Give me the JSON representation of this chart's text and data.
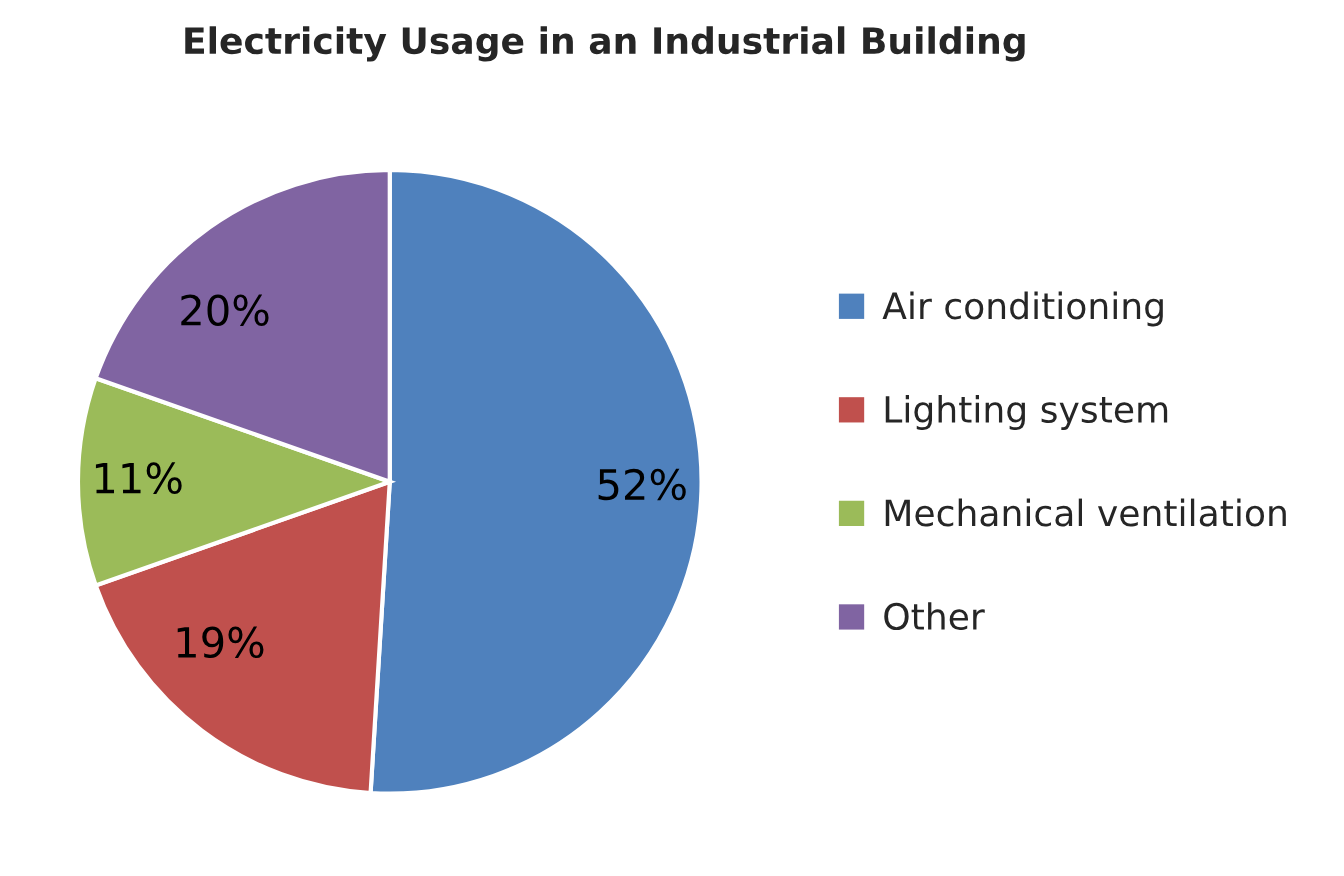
{
  "chart_data": {
    "type": "pie",
    "title": "Electricity Usage in an Industrial Building",
    "categories": [
      "Air conditioning",
      "Lighting system",
      "Mechanical ventilation",
      "Other"
    ],
    "values": [
      52,
      19,
      11,
      20
    ],
    "colors": [
      "#4f81bd",
      "#c0504d",
      "#9bbb59",
      "#8064a2"
    ],
    "value_labels": [
      "52%",
      "19%",
      "11%",
      "20%"
    ],
    "legend": "right"
  }
}
